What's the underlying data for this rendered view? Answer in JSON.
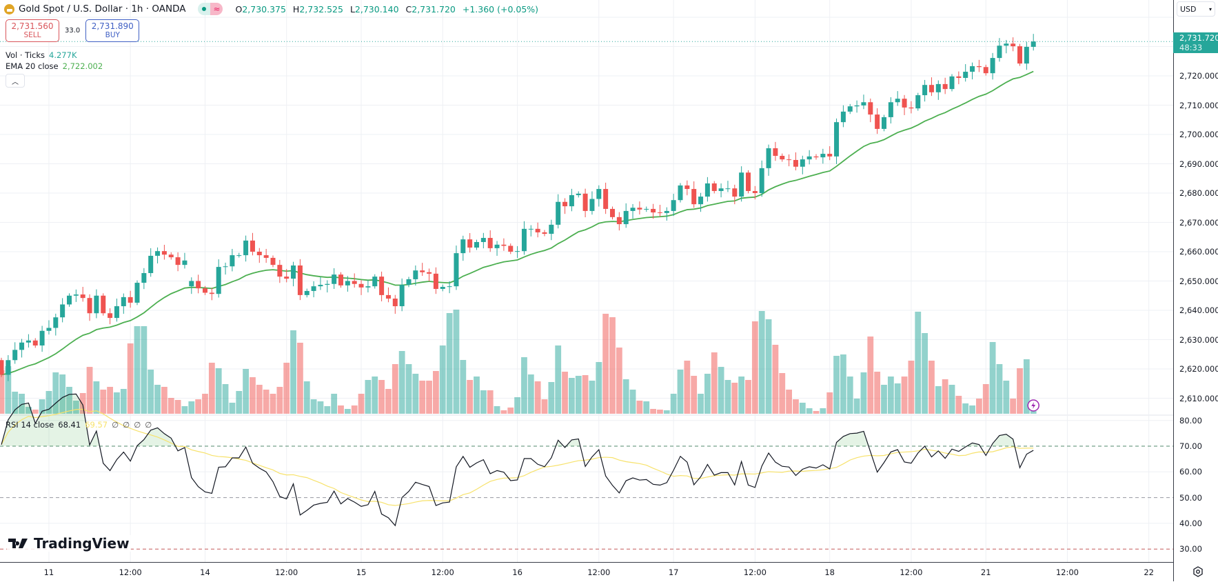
{
  "header": {
    "title": "Gold Spot / U.S. Dollar · 1h · OANDA",
    "market_open_icon": "dot",
    "delayed_icon": "≈",
    "ohlc": [
      {
        "k": "O",
        "v": "2,730.375"
      },
      {
        "k": "H",
        "v": "2,732.525"
      },
      {
        "k": "L",
        "v": "2,730.140"
      },
      {
        "k": "C",
        "v": "2,731.720"
      }
    ],
    "change": "+1.360 (+0.05%)"
  },
  "trade": {
    "sell_price": "2,731.560",
    "sell_label": "SELL",
    "spread": "33.0",
    "buy_price": "2,731.890",
    "buy_label": "BUY"
  },
  "indicators": {
    "vol_label": "Vol · Ticks",
    "vol_value": "4.277K",
    "ema_label": "EMA 20 close",
    "ema_value": "2,722.002",
    "collapse_icon": "chevron-up",
    "rsi_label": "RSI 14 close",
    "rsi_value": "68.41",
    "rsi_ma_value": "69.57",
    "rsi_extra": [
      "∅",
      "∅",
      "∅",
      "∅"
    ]
  },
  "price_axis": {
    "currency": "USD",
    "labels": [
      "2,720.000",
      "2,710.000",
      "2,700.000",
      "2,690.000",
      "2,680.000",
      "2,670.000",
      "2,660.000",
      "2,650.000",
      "2,640.000",
      "2,630.000",
      "2,620.000",
      "2,610.000"
    ],
    "current_price": "2,731.720",
    "countdown": "48:33"
  },
  "rsi_axis": {
    "labels": [
      "80.00",
      "70.00",
      "60.00",
      "50.00",
      "40.00",
      "30.00"
    ]
  },
  "time_axis": {
    "labels": [
      {
        "text": "11",
        "bar": 7
      },
      {
        "text": "12:00",
        "bar": 19
      },
      {
        "text": "14",
        "bar": 30
      },
      {
        "text": "12:00",
        "bar": 42
      },
      {
        "text": "15",
        "bar": 53
      },
      {
        "text": "12:00",
        "bar": 65
      },
      {
        "text": "16",
        "bar": 76
      },
      {
        "text": "12:00",
        "bar": 88
      },
      {
        "text": "17",
        "bar": 99
      },
      {
        "text": "12:00",
        "bar": 111
      },
      {
        "text": "18",
        "bar": 122
      },
      {
        "text": "12:00",
        "bar": 134
      },
      {
        "text": "21",
        "bar": 145
      },
      {
        "text": "12:00",
        "bar": 157
      },
      {
        "text": "22",
        "bar": 169
      }
    ]
  },
  "branding": {
    "logo_text": "TradingView"
  },
  "colors": {
    "up": "#26a69a",
    "down": "#ef5350",
    "ema": "#4caf50",
    "rsi": "#131722",
    "rsi_ma": "#f7e26b",
    "accent": "#26a69a"
  },
  "chart_data": {
    "type": "candlestick",
    "symbol": "XAUUSD",
    "interval": "1h",
    "open_overrides": {
      "0": 2623,
      "28": 2648.2
    },
    "close": [
      2618,
      2623,
      2626.5,
      2629,
      2629.7,
      2628,
      2633,
      2634,
      2637.6,
      2642,
      2645,
      2645.4,
      2644.2,
      2639,
      2645,
      2639,
      2637.4,
      2641.4,
      2644.5,
      2642.6,
      2649.4,
      2652.7,
      2658.6,
      2660.2,
      2659,
      2658.1,
      2655.5,
      2657,
      2650,
      2647.5,
      2646,
      2645.6,
      2654.8,
      2655,
      2658.8,
      2658.8,
      2663.8,
      2660,
      2658.8,
      2657.9,
      2655.5,
      2651.5,
      2650.8,
      2655.3,
      2645.2,
      2646.6,
      2648.2,
      2648.7,
      2649,
      2652.2,
      2648.5,
      2650,
      2649,
      2647.8,
      2648.2,
      2651.5,
      2645.2,
      2644,
      2641.4,
      2648.7,
      2650.6,
      2653.6,
      2653,
      2652.5,
      2647.3,
      2648,
      2648.2,
      2659.5,
      2664.2,
      2661.4,
      2663.3,
      2664.7,
      2661.2,
      2662.4,
      2662,
      2660,
      2660.2,
      2667.8,
      2667.8,
      2666.6,
      2666.1,
      2669.2,
      2677,
      2675.5,
      2679.3,
      2679.8,
      2673.9,
      2678,
      2681.4,
      2674.6,
      2671.8,
      2669.4,
      2673.9,
      2675,
      2674.4,
      2674.6,
      2673.4,
      2673.2,
      2673.9,
      2677.6,
      2682.6,
      2681.4,
      2676.2,
      2678.8,
      2683.3,
      2680.7,
      2681.6,
      2681.6,
      2678.8,
      2687,
      2680.7,
      2680,
      2688.5,
      2695.3,
      2692.7,
      2691.5,
      2691.3,
      2689,
      2691.5,
      2692.5,
      2692.2,
      2693.4,
      2692.5,
      2704.2,
      2707.8,
      2709.6,
      2709.9,
      2711,
      2706.8,
      2701.9,
      2705.9,
      2711,
      2712.2,
      2709.2,
      2708.9,
      2713.4,
      2716.9,
      2714.4,
      2717.2,
      2715.5,
      2719.8,
      2719.3,
      2721.4,
      2723.3,
      2723,
      2720.9,
      2726.1,
      2730.3,
      2731,
      2730.1,
      2724.2,
      2729.9,
      2731.72
    ],
    "volume_relative": [
      63,
      69,
      32,
      29,
      10,
      6,
      21,
      33,
      60,
      57,
      39,
      19,
      30,
      68,
      47,
      35,
      39,
      31,
      36,
      102,
      127,
      127,
      64,
      42,
      39,
      23,
      20,
      11,
      18,
      21,
      29,
      74,
      66,
      43,
      16,
      33,
      65,
      53,
      42,
      35,
      29,
      39,
      74,
      121,
      103,
      47,
      21,
      18,
      11,
      29,
      12,
      7,
      12,
      29,
      49,
      54,
      49,
      36,
      72,
      91,
      72,
      58,
      48,
      48,
      62,
      99,
      146,
      151,
      78,
      49,
      54,
      34,
      34,
      11,
      5,
      9,
      24,
      82,
      57,
      47,
      21,
      46,
      99,
      61,
      52,
      55,
      56,
      48,
      75,
      145,
      140,
      96,
      50,
      35,
      19,
      18,
      7,
      6,
      5,
      29,
      64,
      77,
      55,
      29,
      58,
      89,
      68,
      49,
      45,
      54,
      49,
      134,
      149,
      137,
      100,
      59,
      35,
      21,
      16,
      8,
      4,
      8,
      31,
      84,
      86,
      54,
      22,
      60,
      112,
      61,
      42,
      54,
      44,
      54,
      77,
      148,
      117,
      77,
      40,
      50,
      42,
      26,
      15,
      12,
      22,
      43,
      104,
      72,
      48,
      22,
      66,
      79,
      4
    ],
    "ema_period": 20,
    "rsi_period": 14,
    "rsi_ma_period": 14,
    "price_range": [
      2605,
      2745
    ],
    "rsi_range": [
      20,
      85
    ],
    "rsi_levels": [
      70,
      50,
      30
    ]
  }
}
